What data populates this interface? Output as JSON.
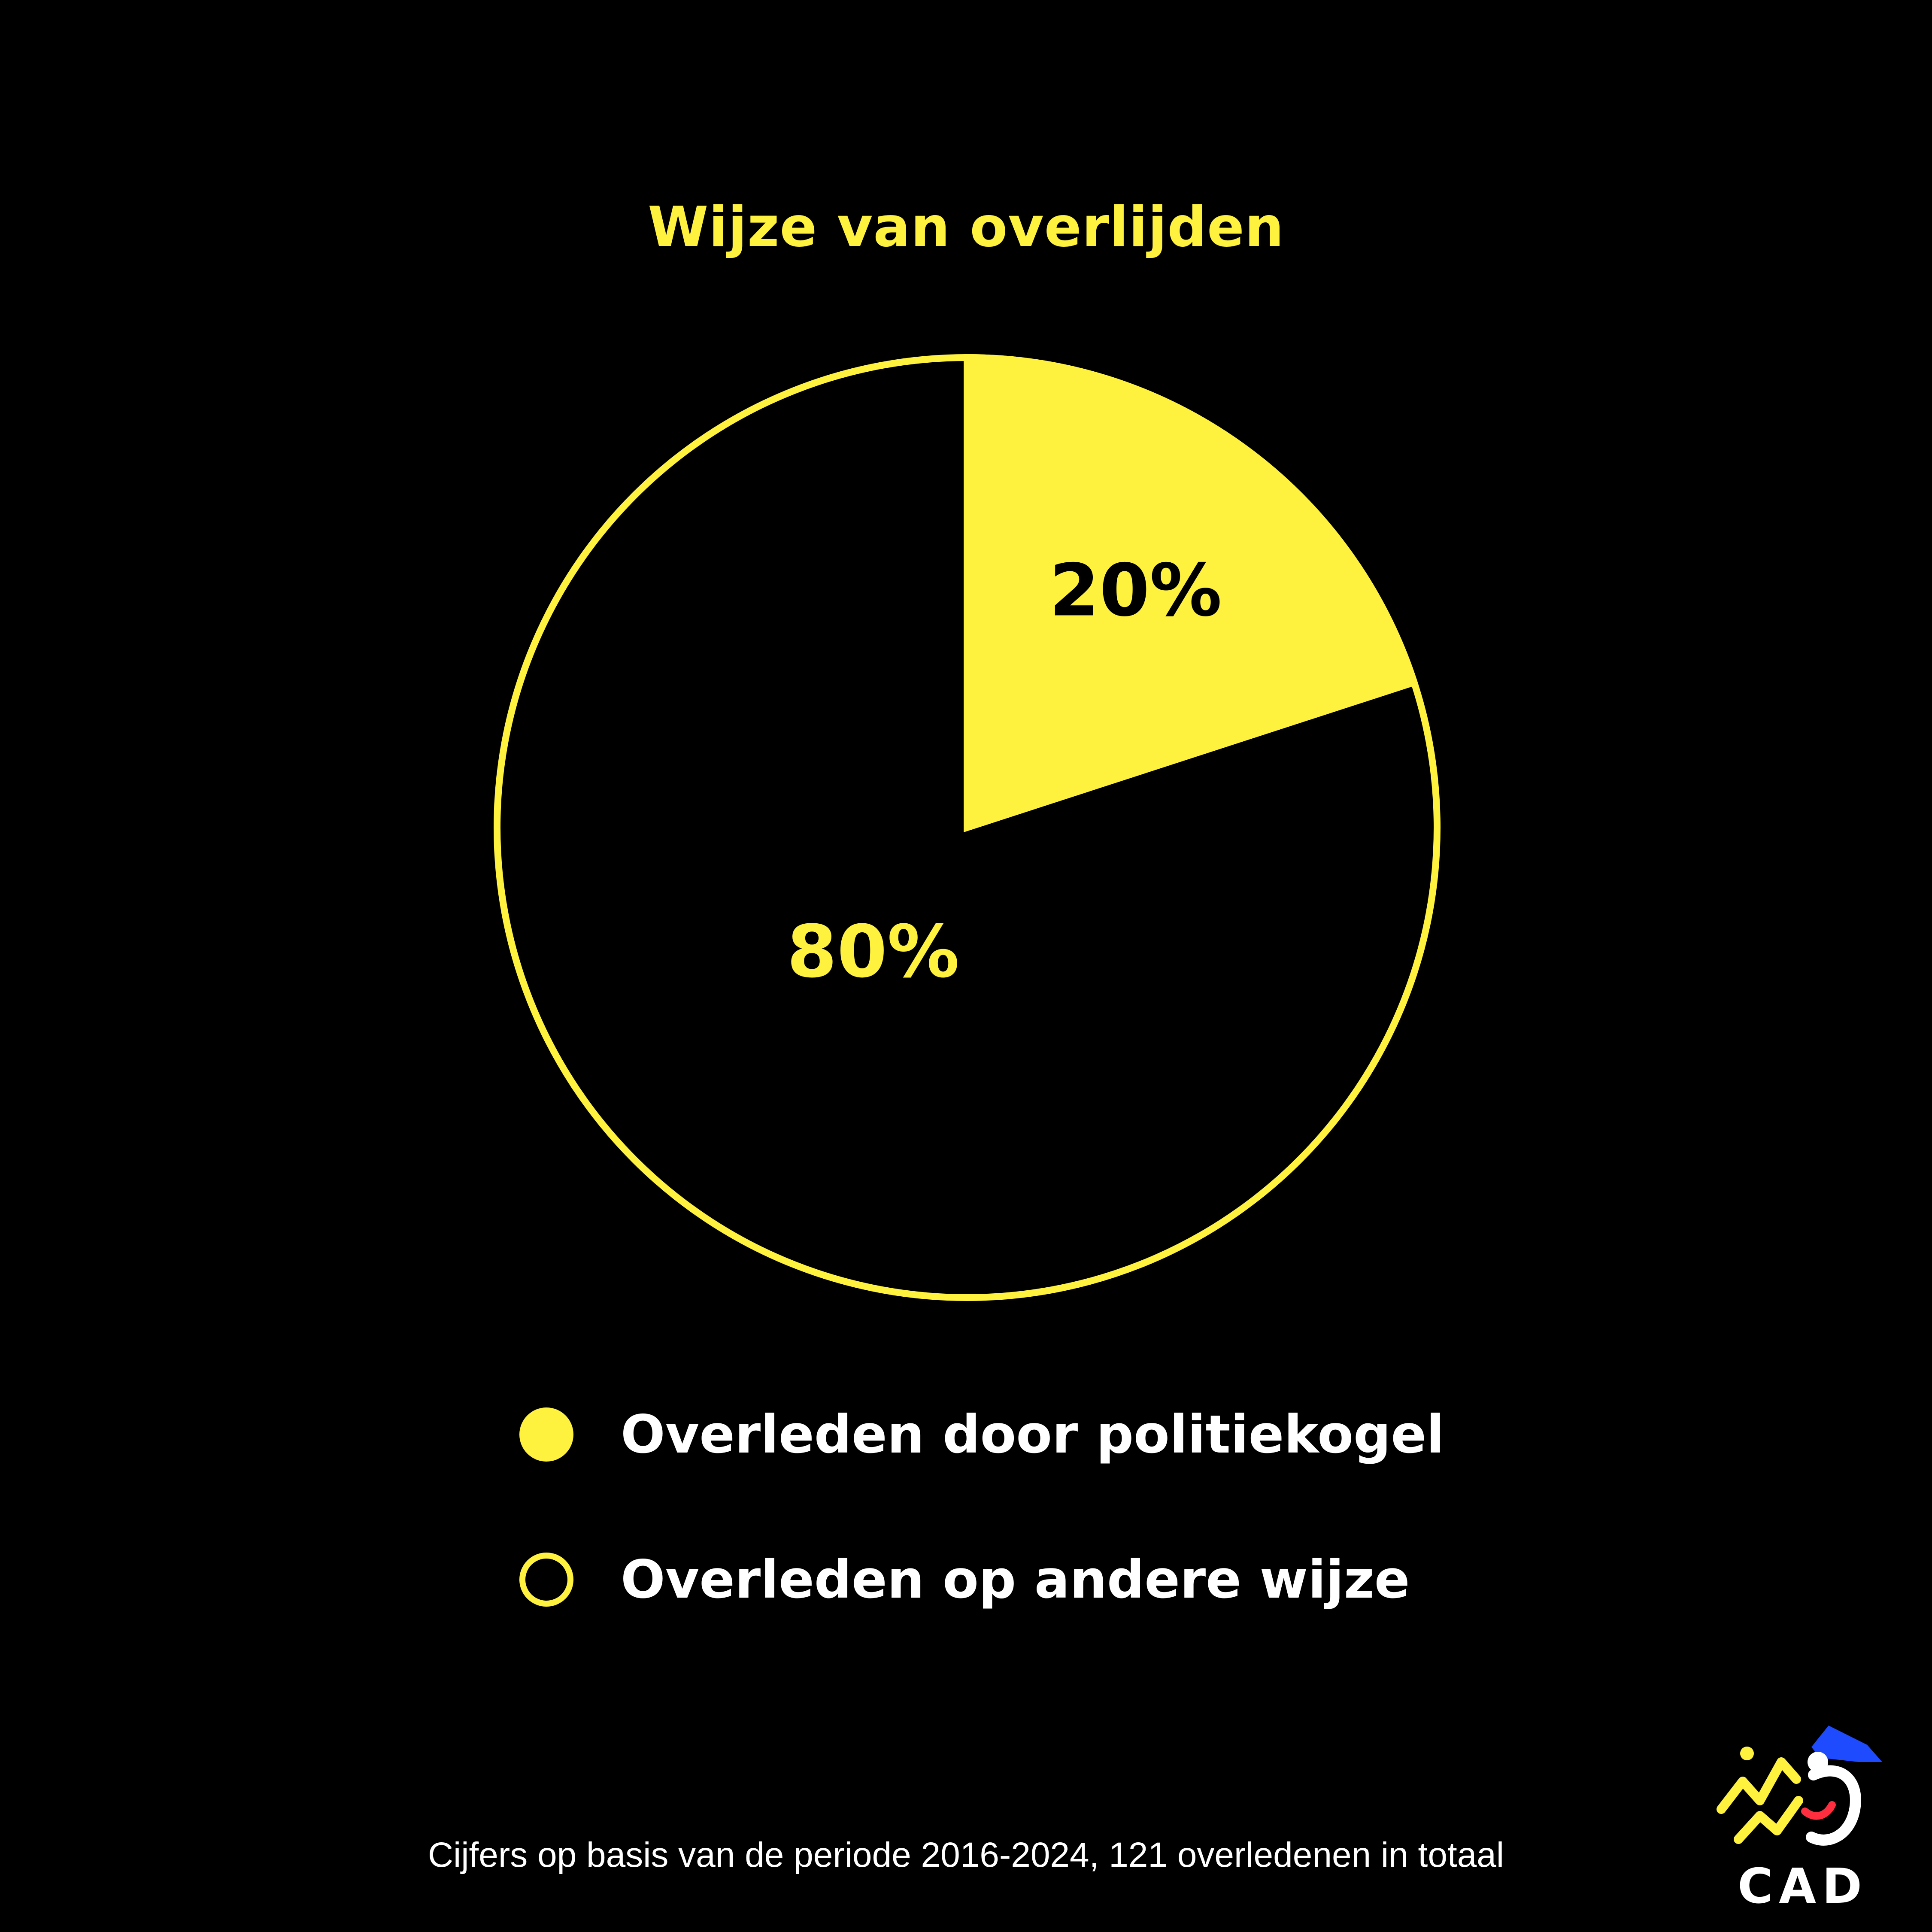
{
  "chart_data": {
    "type": "pie",
    "title": "Wijze van overlijden",
    "slices": [
      {
        "label": "Overleden door politiekogel",
        "value": 20,
        "display": "20%",
        "color": "#FFF23F",
        "fill": "filled"
      },
      {
        "label": "Overleden op andere wijze",
        "value": 80,
        "display": "80%",
        "color": "#000000",
        "fill": "outline"
      }
    ],
    "start_angle": "12 o'clock",
    "direction": "clockwise",
    "legend_placement": "bottom"
  },
  "colors": {
    "background": "#000000",
    "accent": "#FFF23F",
    "text": "#FFFFFF"
  },
  "footnote": "Cijfers op basis van de periode 2016-2024, 121 overledenen in totaal",
  "logo": {
    "text": "CAD",
    "icon": "cad-logo-icon"
  }
}
